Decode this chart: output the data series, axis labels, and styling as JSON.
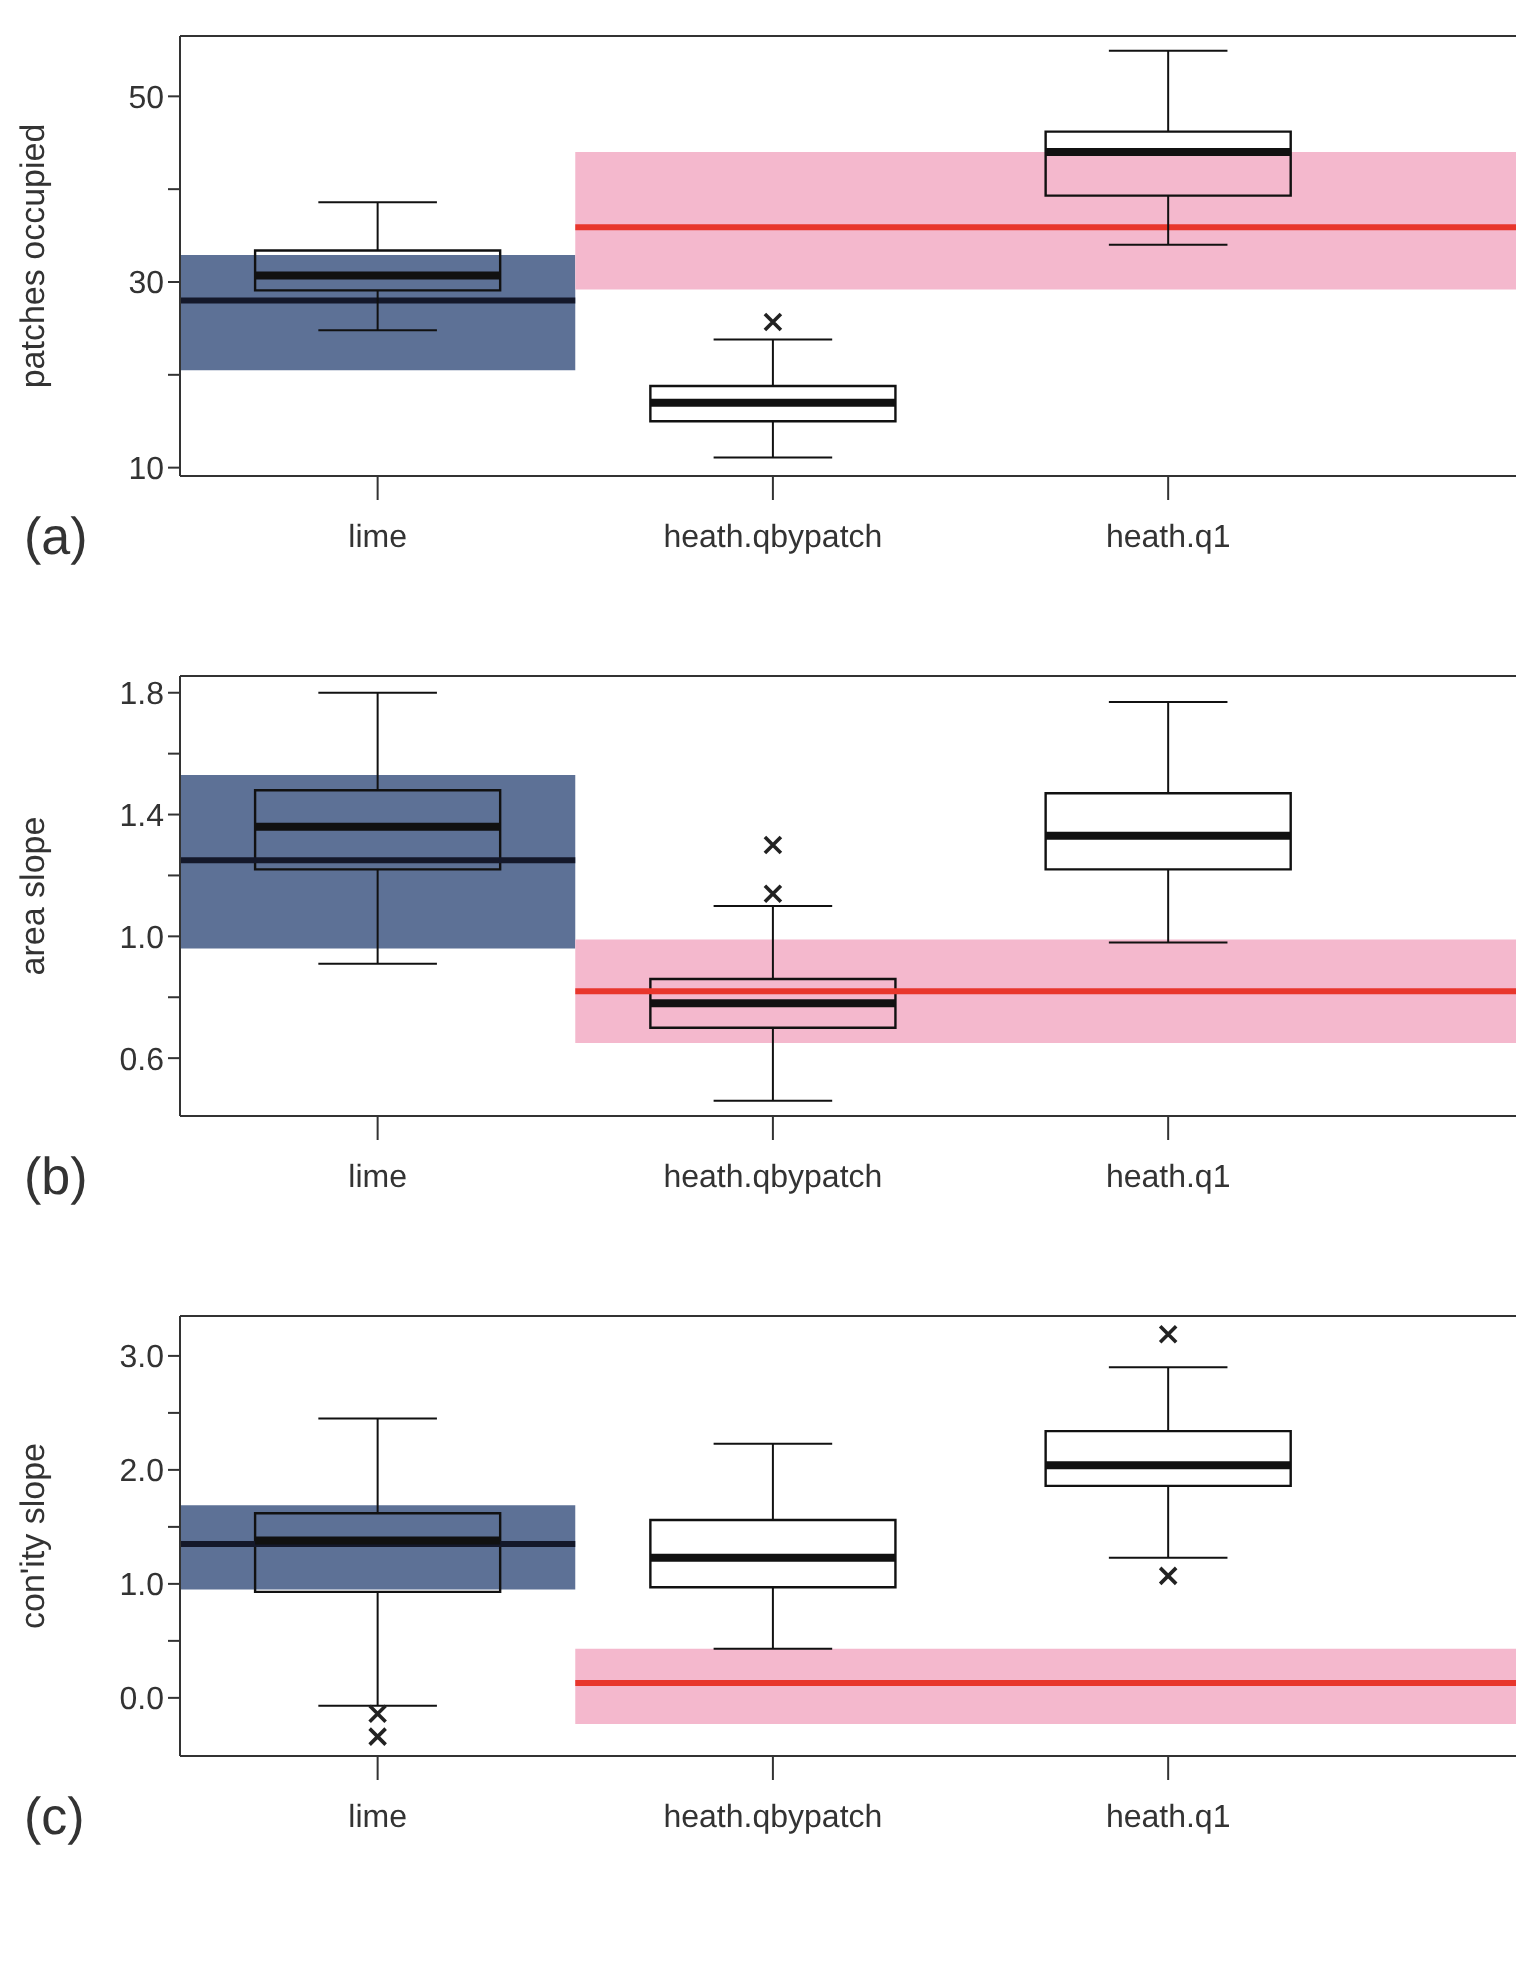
{
  "chart_data": [
    {
      "type": "box",
      "categories": [
        "lime",
        "heath.qbypatch",
        "heath.q1"
      ],
      "ylabel": "patches occupied",
      "ylim": [
        9.1,
        56.5
      ],
      "yticks": [
        10,
        {
          "value": 20,
          "label": null
        },
        30,
        {
          "value": 40,
          "label": null
        },
        50
      ],
      "boxes": [
        {
          "low": 24.8,
          "q1": 29.1,
          "median": 30.7,
          "q3": 33.4,
          "high": 38.6
        },
        {
          "low": 11.1,
          "q1": 15.0,
          "median": 17.0,
          "q3": 18.8,
          "high": 23.8,
          "outliers": [
            25.7
          ]
        },
        {
          "low": 34.0,
          "q1": 39.3,
          "median": 44.0,
          "q3": 46.2,
          "high": 54.9
        }
      ],
      "bands": [
        {
          "axis": "y",
          "from": 20.5,
          "to": 32.9,
          "color": "#5d7196"
        },
        {
          "axis": "y",
          "from": 29.2,
          "to": 44.0,
          "color": "#f4b8cd"
        }
      ],
      "ref_lines": [
        {
          "axis": "y",
          "value": 28.0,
          "color": "#14182a"
        },
        {
          "axis": "y",
          "value": 35.9,
          "color": "#e8362c"
        }
      ],
      "annotations": [
        "(a)"
      ]
    },
    {
      "type": "box",
      "categories": [
        "lime",
        "heath.qbypatch",
        "heath.q1"
      ],
      "ylabel": "area slope",
      "ylim": [
        0.41,
        1.855
      ],
      "yticks": [
        0.6,
        {
          "value": 0.8,
          "label": null
        },
        {
          "value": 1,
          "label": "1.0"
        },
        {
          "value": 1.2,
          "label": null
        },
        1.4,
        {
          "value": 1.6,
          "label": null
        },
        1.8
      ],
      "boxes": [
        {
          "low": 0.91,
          "q1": 1.22,
          "median": 1.36,
          "q3": 1.48,
          "high": 1.8
        },
        {
          "low": 0.46,
          "q1": 0.7,
          "median": 0.78,
          "q3": 0.86,
          "high": 1.1,
          "outliers": [
            1.3,
            1.14
          ]
        },
        {
          "low": 0.98,
          "q1": 1.22,
          "median": 1.33,
          "q3": 1.47,
          "high": 1.77
        }
      ],
      "bands": [
        {
          "axis": "y",
          "from": 0.96,
          "to": 1.53,
          "color": "#5d7196"
        },
        {
          "axis": "y",
          "from": 0.65,
          "to": 0.99,
          "color": "#f4b8cd"
        }
      ],
      "ref_lines": [
        {
          "axis": "y",
          "value": 1.25,
          "color": "#14182a"
        },
        {
          "axis": "y",
          "value": 0.82,
          "color": "#e8362c"
        }
      ],
      "annotations": [
        "(b)"
      ]
    },
    {
      "type": "box",
      "categories": [
        "lime",
        "heath.qbypatch",
        "heath.q1"
      ],
      "ylabel": "con'ity slope",
      "ylim": [
        -0.51,
        3.35
      ],
      "yticks": [
        {
          "value": 0,
          "label": "0.0"
        },
        {
          "value": 0.5,
          "label": null
        },
        {
          "value": 1,
          "label": "1.0"
        },
        {
          "value": 1.5,
          "label": null
        },
        {
          "value": 2,
          "label": "2.0"
        },
        {
          "value": 2.5,
          "label": null
        },
        {
          "value": 3,
          "label": "3.0"
        }
      ],
      "boxes": [
        {
          "low": -0.07,
          "q1": 0.93,
          "median": 1.38,
          "q3": 1.62,
          "high": 2.45,
          "outliers": [
            -0.14,
            -0.34
          ]
        },
        {
          "low": 0.43,
          "q1": 0.97,
          "median": 1.23,
          "q3": 1.56,
          "high": 2.23
        },
        {
          "low": 1.23,
          "q1": 1.86,
          "median": 2.04,
          "q3": 2.34,
          "high": 2.9,
          "outliers": [
            3.19,
            1.07
          ]
        }
      ],
      "bands": [
        {
          "axis": "y",
          "from": 0.95,
          "to": 1.69,
          "color": "#5d7196"
        },
        {
          "axis": "y",
          "from": -0.23,
          "to": 0.43,
          "color": "#f4b8cd"
        }
      ],
      "ref_lines": [
        {
          "axis": "y",
          "value": 1.35,
          "color": "#14182a"
        },
        {
          "axis": "y",
          "value": 0.13,
          "color": "#e8362c"
        }
      ],
      "annotations": [
        "(c)"
      ]
    }
  ]
}
